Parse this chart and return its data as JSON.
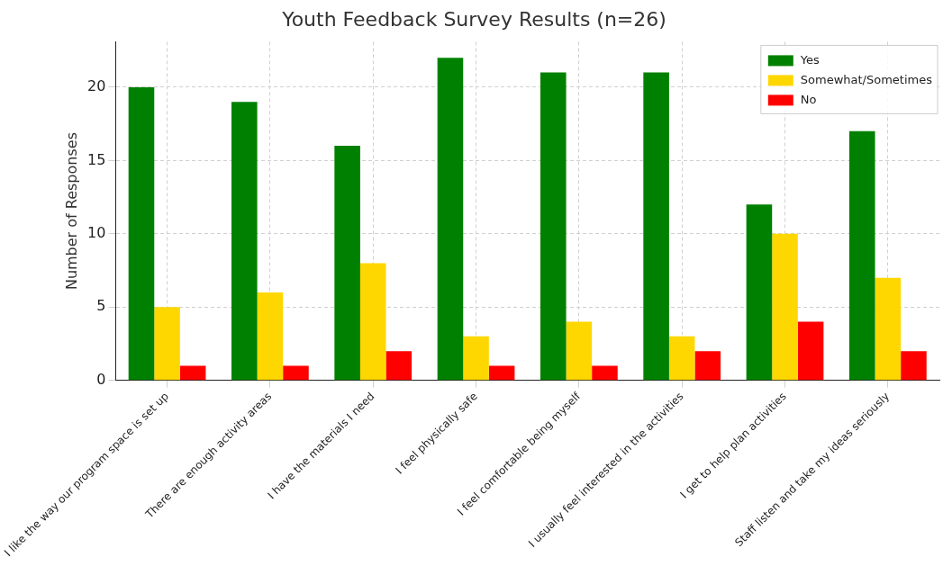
{
  "chart_data": {
    "type": "bar",
    "title": "Youth Feedback Survey Results (n=26)",
    "ylabel": "Number of Responses",
    "categories": [
      "I like the way our program space is set up",
      "There are enough activity areas",
      "I have the materials I need",
      "I feel physically safe",
      "I feel comfortable being myself",
      "I usually feel interested in the activities",
      "I get to help plan activities",
      "Staff listen and take my ideas seriously"
    ],
    "series": [
      {
        "name": "Yes",
        "color": "#008000",
        "values": [
          20,
          19,
          16,
          22,
          21,
          21,
          12,
          17
        ]
      },
      {
        "name": "Somewhat/Sometimes",
        "color": "#ffd700",
        "values": [
          5,
          6,
          8,
          3,
          4,
          3,
          10,
          7
        ]
      },
      {
        "name": "No",
        "color": "#ff0000",
        "values": [
          1,
          1,
          2,
          1,
          1,
          2,
          4,
          2
        ]
      }
    ],
    "ylim": [
      0,
      23.1
    ],
    "yticks": [
      0,
      5,
      10,
      15,
      20
    ],
    "grid": true,
    "legend": "top right"
  }
}
